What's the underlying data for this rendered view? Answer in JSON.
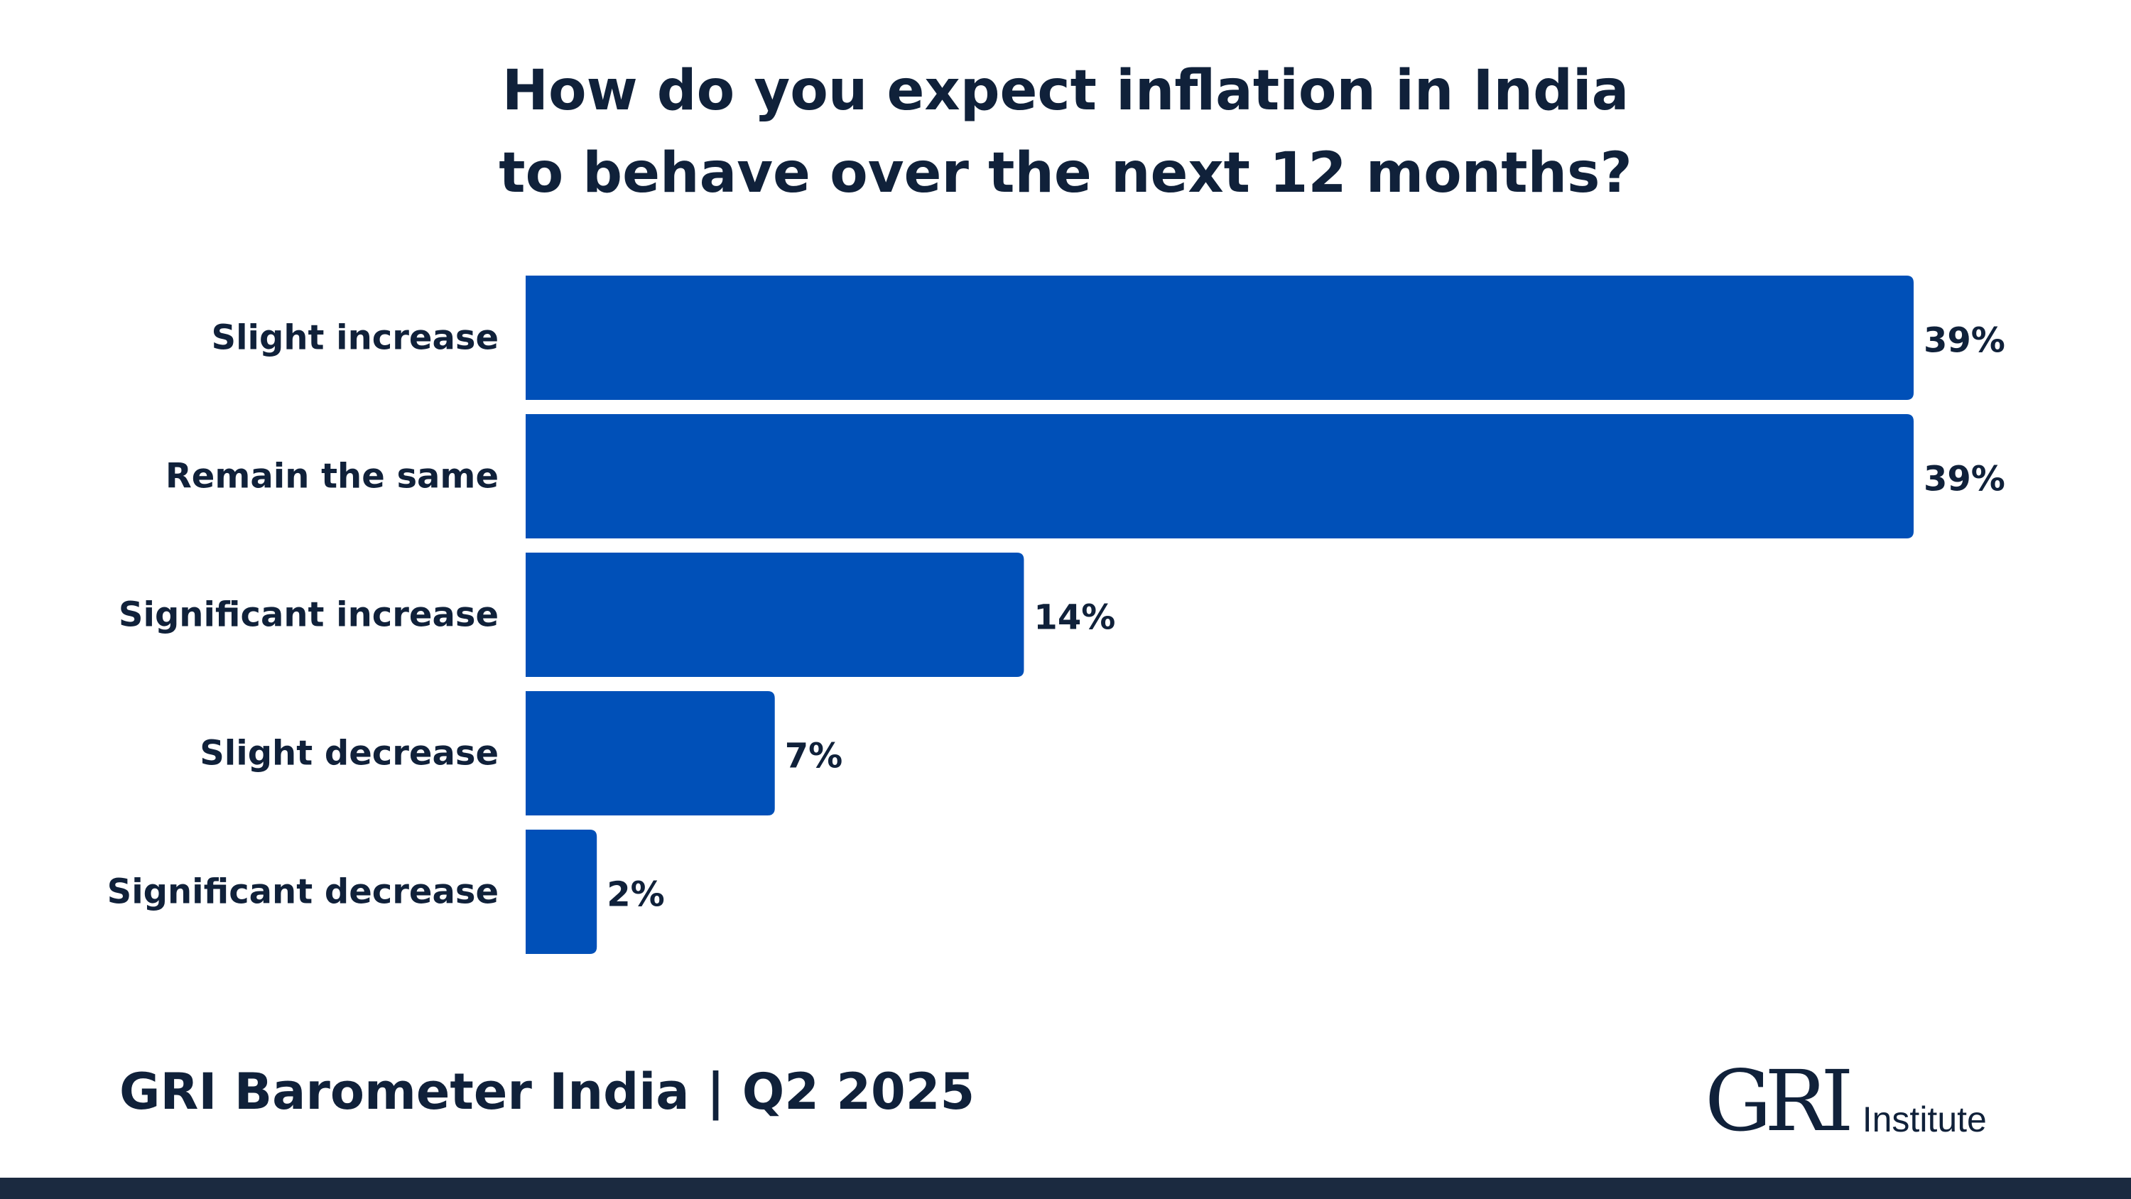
{
  "colors": {
    "bar": "#0050b8",
    "text": "#10213a",
    "bottom_bar": "#1b2a40"
  },
  "chart_data": {
    "type": "bar",
    "orientation": "horizontal",
    "title": [
      "How do you expect inflation in India",
      "to behave over the next 12 months?"
    ],
    "categories": [
      "Slight increase",
      "Remain the same",
      "Significant increase",
      "Slight decrease",
      "Significant decrease"
    ],
    "values": [
      39,
      39,
      14,
      7,
      2
    ],
    "value_labels": [
      "39%",
      "39%",
      "14%",
      "7%",
      "2%"
    ],
    "unit": "%",
    "xlim": [
      0,
      39
    ],
    "grid": false,
    "legend": "none"
  },
  "footer": {
    "title": "GRI Barometer India | Q2 2025"
  },
  "logo": {
    "mark": "GRI",
    "text": "Institute"
  }
}
